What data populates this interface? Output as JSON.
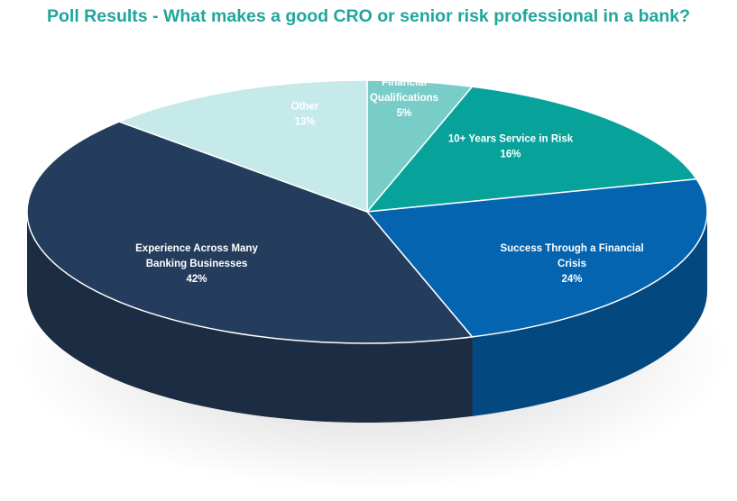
{
  "title": "Poll Results - What makes a good CRO or senior risk professional in a bank?",
  "chart_data": {
    "type": "pie",
    "style": "3d",
    "title": "Poll Results - What makes a good CRO or senior risk professional in a bank?",
    "slices": [
      {
        "label_lines": [
          "Financial",
          "Qualifications"
        ],
        "value": 5,
        "value_label": "5%",
        "color": "#79cdc9"
      },
      {
        "label_lines": [
          "10+ Years Service in Risk"
        ],
        "value": 16,
        "value_label": "16%",
        "color": "#07a39b"
      },
      {
        "label_lines": [
          "Success Through a Financial",
          "Crisis"
        ],
        "value": 24,
        "value_label": "24%",
        "color": "#0464b0"
      },
      {
        "label_lines": [
          "Experience Across Many",
          "Banking Businesses"
        ],
        "value": 42,
        "value_label": "42%",
        "color": "#253d5d"
      },
      {
        "label_lines": [
          "Other"
        ],
        "value": 13,
        "value_label": "13%",
        "color": "#c6e9e9"
      }
    ],
    "legend": "none"
  }
}
